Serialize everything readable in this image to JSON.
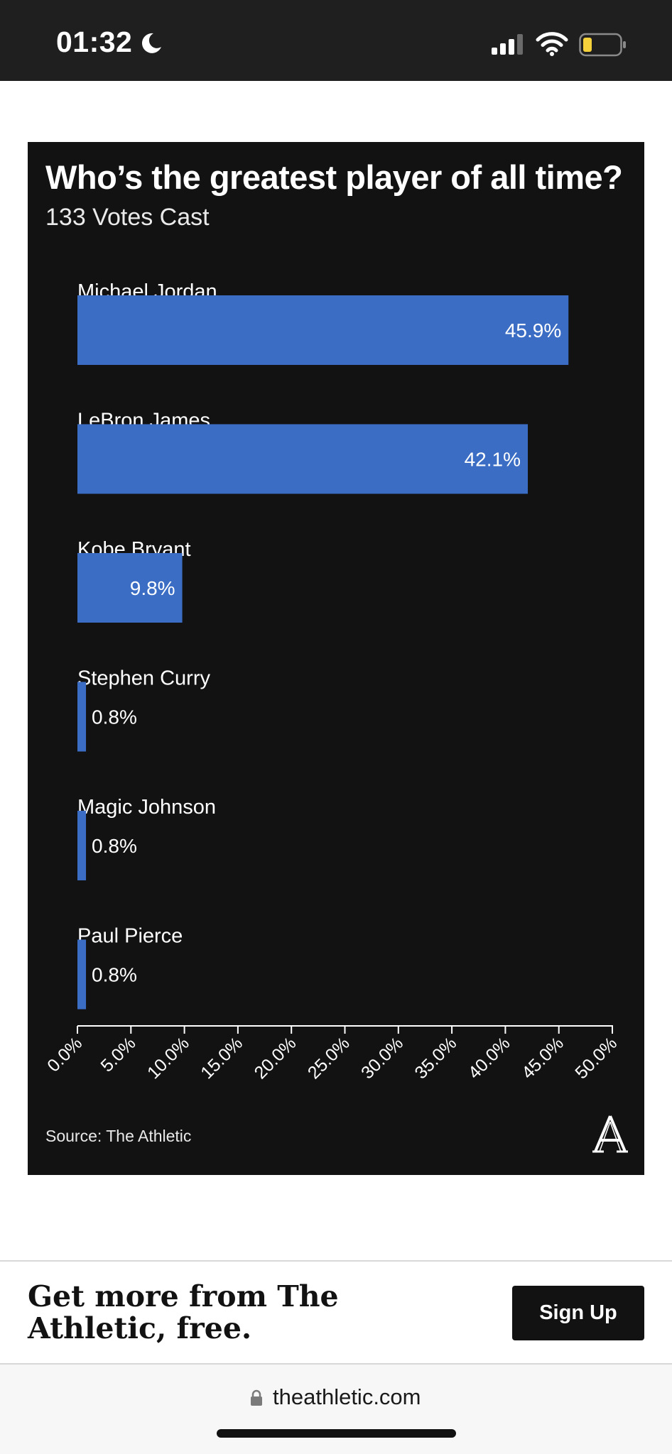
{
  "status_bar": {
    "time": "01:32",
    "icons": [
      "moon-icon",
      "cellular-signal-icon",
      "wifi-icon",
      "battery-low-icon"
    ],
    "battery_color": "#f5d13b"
  },
  "chart_data": {
    "type": "bar",
    "orientation": "horizontal",
    "title": "Who’s the greatest player of all time?",
    "subtitle": "133 Votes Cast",
    "categories": [
      "Michael Jordan",
      "LeBron James",
      "Kobe Bryant",
      "Stephen Curry",
      "Magic Johnson",
      "Paul Pierce"
    ],
    "values": [
      45.9,
      42.1,
      9.8,
      0.8,
      0.8,
      0.8
    ],
    "value_labels": [
      "45.9%",
      "42.1%",
      "9.8%",
      "0.8%",
      "0.8%",
      "0.8%"
    ],
    "xlim": [
      0,
      50
    ],
    "ticks": [
      0,
      5,
      10,
      15,
      20,
      25,
      30,
      35,
      40,
      45,
      50
    ],
    "tick_labels": [
      "0.0%",
      "5.0%",
      "10.0%",
      "15.0%",
      "20.0%",
      "25.0%",
      "30.0%",
      "35.0%",
      "40.0%",
      "45.0%",
      "50.0%"
    ],
    "bar_color": "#3b6dc4",
    "background": "#121212",
    "grid": false,
    "legend": "none",
    "source": "Source: The Athletic"
  },
  "promo": {
    "text": "Get more from The Athletic, free.",
    "button_label": "Sign Up"
  },
  "browser": {
    "url": "theathletic.com"
  }
}
